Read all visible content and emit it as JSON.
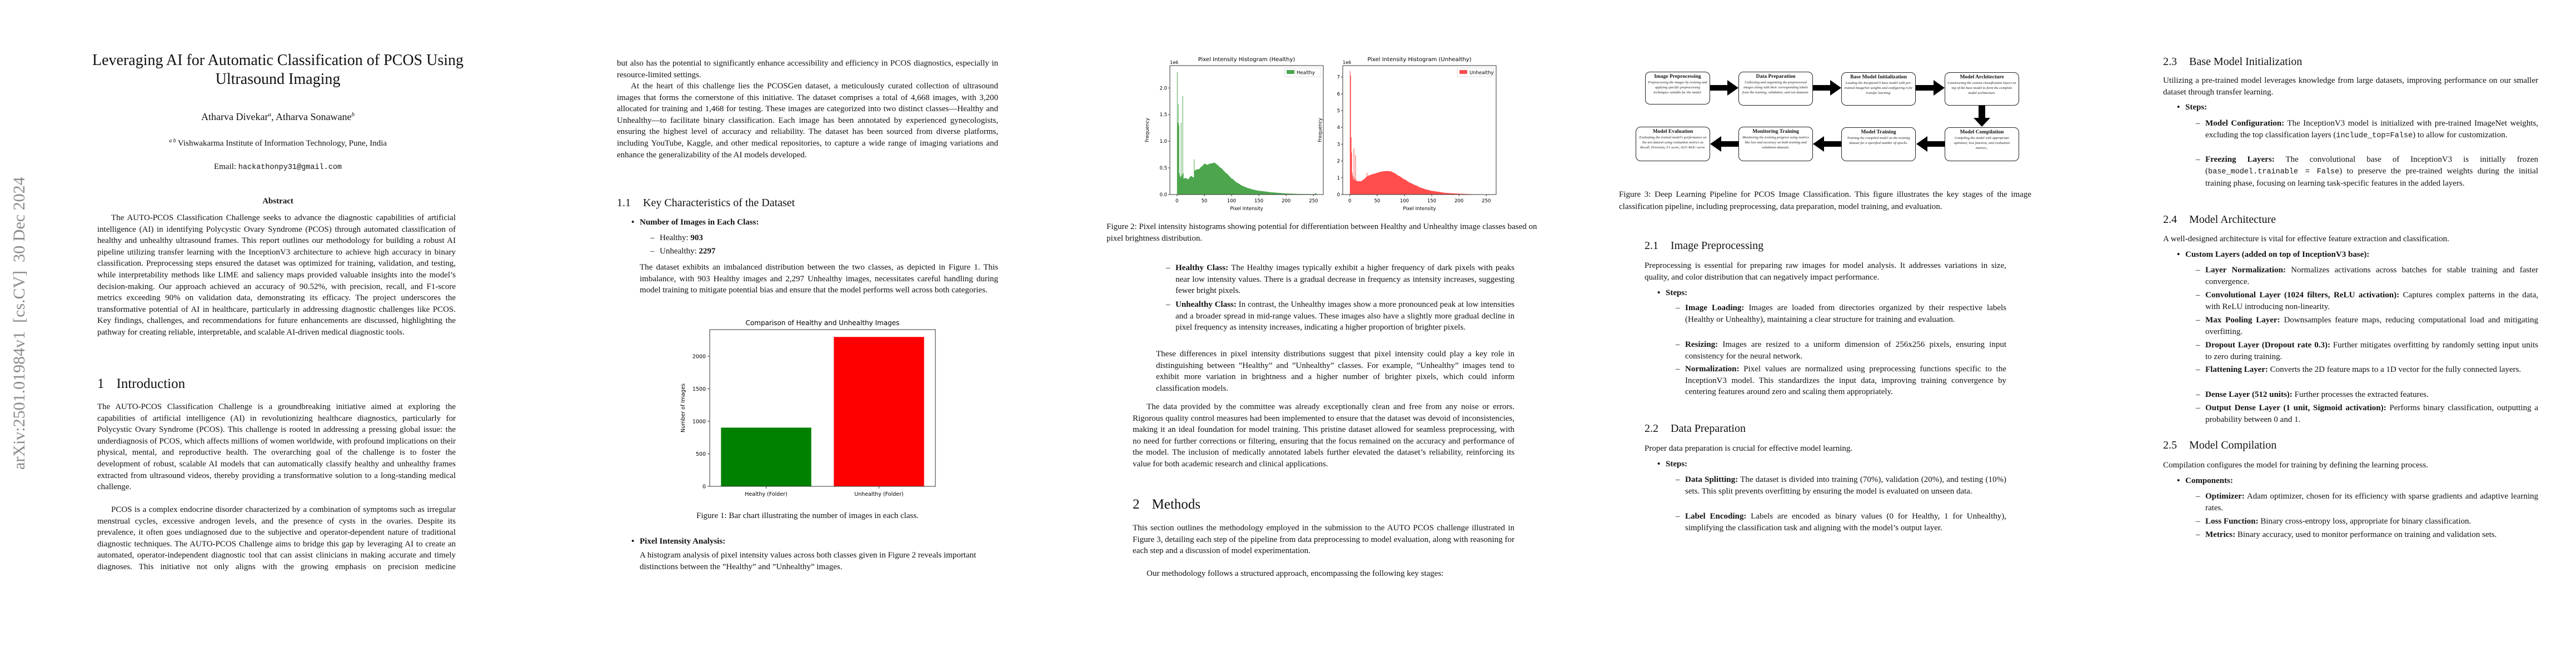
{
  "arxiv_stamp": "arXiv:2501.01984v1  [cs.CV]  30 Dec 2024",
  "title": "Leveraging AI for Automatic Classification of PCOS Using Ultrasound Imaging",
  "authors": {
    "first": "Atharva Divekar",
    "first_sup": "a",
    "second": "Atharva Sonawane",
    "second_sup": "b",
    "separator": ","
  },
  "affiliation": {
    "sup": "a b",
    "text": "Vishwakarma Institute of Information Technology, Pune, India"
  },
  "email": {
    "label": "Email:",
    "address": "hackathonpy31@gmail.com"
  },
  "abstract": {
    "heading": "Abstract",
    "text": "The AUTO-PCOS Classification Challenge seeks to advance the diagnostic capabilities of artificial intelligence (AI) in identifying Polycystic Ovary Syndrome (PCOS) through automated classification of healthy and unhealthy ultrasound frames. This report outlines our methodology for building a robust AI pipeline utilizing transfer learning with the InceptionV3 architecture to achieve high accuracy in binary classification. Preprocessing steps ensured the dataset was optimized for training, validation, and testing, while interpretability methods like LIME and saliency maps provided valuable insights into the model’s decision-making. Our approach achieved an accuracy of 90.52%, with precision, recall, and F1-score metrics exceeding 90% on validation data, demonstrating its efficacy. The project underscores the transformative potential of AI in healthcare, particularly in addressing diagnostic challenges like PCOS. Key findings, challenges, and recommendations for future enhancements are discussed, highlighting the pathway for creating reliable, interpretable, and scalable AI-driven medical diagnostic tools."
  },
  "intro": {
    "number": "1",
    "heading": "Introduction",
    "p1": "The AUTO-PCOS Classification Challenge is a groundbreaking initiative aimed at exploring the capabilities of artificial intelligence (AI) in revolutionizing healthcare diagnostics, particularly for Polycystic Ovary Syndrome (PCOS). This challenge is rooted in addressing a pressing global issue: the underdiagnosis of PCOS, which affects millions of women worldwide, with profound implications on their physical, mental, and reproductive health. The overarching goal of the challenge is to foster the development of robust, scalable AI models that can automatically classify healthy and unhealthy frames extracted from ultrasound videos, thereby providing a transformative solution to a long-standing medical challenge.",
    "p2a": "PCOS is a complex endocrine disorder characterized by a combination of symptoms such as irregular menstrual cycles, excessive androgen levels, and the presence of cysts in the ovaries. Despite its prevalence, it often goes undiagnosed due to the subjective and operator-dependent nature of traditional diagnostic techniques. The AUTO-PCOS Challenge aims to bridge this gap by leveraging AI to create an automated, operator-independent diagnostic tool that can assist clinicians in making accurate and timely diagnoses. This initiative not only aligns with the growing emphasis on precision medicine",
    "p2b": "but also has the potential to significantly enhance accessibility and efficiency in PCOS diagnostics, especially in resource-limited settings.",
    "p3": "At the heart of this challenge lies the PCOSGen dataset, a meticulously curated collection of ultrasound images that forms the cornerstone of this initiative. The dataset comprises a total of 4,668 images, with 3,200 allocated for training and 1,468 for testing. These images are categorized into two distinct classes—Healthy and Unhealthy—to facilitate binary classification. Each image has been annotated by experienced gynecologists, ensuring the highest level of accuracy and reliability. The dataset has been sourced from diverse platforms, including YouTube, Kaggle, and other medical repositories, to capture a wide range of imaging variations and enhance the generalizability of the AI models developed."
  },
  "dataset": {
    "number": "1.1",
    "heading": "Key Characteristics of the Dataset",
    "bullet1": "Number of Images in Each Class:",
    "healthy_label": "Healthy:",
    "healthy_value": "903",
    "unhealthy_label": "Unhealthy:",
    "unhealthy_value": "2297",
    "imbalance_text": "The dataset exhibits an imbalanced distribution between the two classes, as depicted in Figure 1. This imbalance, with 903 Healthy images and 2,297 Unhealthy images, necessitates careful handling during model training to mitigate potential bias and ensure that the model performs well across both categories.",
    "figure1_caption": "Figure 1: Bar chart illustrating the number of images in each class.",
    "bullet2": "Pixel Intensity Analysis:",
    "pixel_text": "A histogram analysis of pixel intensity values across both classes given in Figure 2 reveals important distinctions between the ”Healthy” and ”Unhealthy” images.",
    "figure2_caption": "Figure 2: Pixel intensity histograms showing potential for differentiation between Healthy and Unhealthy image classes based on pixel brightness distribution.",
    "healthy_class_lead": "Healthy Class:",
    "healthy_class_text": "The Healthy images typically exhibit a higher frequency of dark pixels with peaks near low intensity values. There is a gradual decrease in frequency as intensity increases, suggesting fewer bright pixels.",
    "unhealthy_class_lead": "Unhealthy Class:",
    "unhealthy_class_text": "In contrast, the Unhealthy images show a more pronounced peak at low intensities and a broader spread in mid-range values. These images also have a slightly more gradual decline in pixel frequency as intensity increases, indicating a higher proportion of brighter pixels.",
    "differences_text": "These differences in pixel intensity distributions suggest that pixel intensity could play a key role in distinguishing between ”Healthy” and ”Unhealthy” classes. For example, ”Unhealthy” images tend to exhibit more variation in brightness and a higher number of brighter pixels, which could inform classification models.",
    "clean_text": "The data provided by the committee was already exceptionally clean and free from any noise or errors. Rigorous quality control measures had been implemented to ensure that the dataset was devoid of inconsistencies, making it an ideal foundation for model training. This pristine dataset allowed for seamless preprocessing, with no need for further corrections or filtering, ensuring that the focus remained on the accuracy and performance of the model. The inclusion of medically annotated labels further elevated the dataset’s reliability, reinforcing its value for both academic research and clinical applications."
  },
  "methods": {
    "number": "2",
    "heading": "Methods",
    "p1": "This section outlines the methodology employed in the submission to the AUTO PCOS challenge illustrated in Figure 3, detailing each step of the pipeline from data preprocessing to model evaluation, along with reasoning for each step and a discussion of model experimentation.",
    "p2": "Our methodology follows a structured approach, encompassing the following key stages:",
    "figure3_caption": "Figure 3: Deep Learning Pipeline for PCOS Image Classification. This figure illustrates the key stages of the image classification pipeline, including preprocessing, data preparation, model training, and evaluation.",
    "pipeline": [
      {
        "title": "Image Preprocessing",
        "desc": "Preprocessing the images by resizing and applying specific preprocessing techniques suitable for the model."
      },
      {
        "title": "Data Preparation",
        "desc": "Collecting and organizing the preprocessed images along with their corresponding labels from the training, validation, and test datasets."
      },
      {
        "title": "Base Model Initialization",
        "desc": "Loading the InceptionV3 base model with pre-trained ImageNet weights and configuring it for transfer learning."
      },
      {
        "title": "Model Architecture",
        "desc": "Constructing the custom classification layers on top of the base model to form the complete model architecture."
      },
      {
        "title": "Model Compilation",
        "desc": "Compiling the model with appropriate optimizer, loss function, and evaluation metrics.."
      },
      {
        "title": "Model Training",
        "desc": "Training the compiled model on the training dataset for a specified number of epochs."
      },
      {
        "title": "Monitoring Training",
        "desc": "Monitoring the training progress using metrics like loss and accuracy on both training and validation datasets."
      },
      {
        "title": "Model Evaluation",
        "desc": "Evaluating the trained model's performance on the test dataset using evaluation metrics as Recall, Precision, F1 score, AUC-ROC curve."
      }
    ]
  },
  "preprocessing": {
    "number": "2.1",
    "heading": "Image Preprocessing",
    "intro": "Preprocessing is essential for preparing raw images for model analysis. It addresses variations in size, quality, and color distribution that can negatively impact performance.",
    "steps_label": "Steps:",
    "items": [
      {
        "lead": "Image Loading:",
        "text": "Images are loaded from directories organized by their respective labels (Healthy or Unhealthy), maintaining a clear structure for training and evaluation."
      },
      {
        "lead": "Resizing:",
        "text": "Images are resized to a uniform dimension of 256x256 pixels, ensuring input consistency for the neural network."
      },
      {
        "lead": "Normalization:",
        "text": "Pixel values are normalized using preprocessing functions specific to the InceptionV3 model. This standardizes the input data, improving training convergence by centering features around zero and scaling them appropriately."
      }
    ]
  },
  "data_prep": {
    "number": "2.2",
    "heading": "Data Preparation",
    "intro": "Proper data preparation is crucial for effective model learning.",
    "steps_label": "Steps:",
    "items": [
      {
        "lead": "Data Splitting:",
        "text": "The dataset is divided into training (70%), validation (20%), and testing (10%) sets. This split prevents overfitting by ensuring the model is evaluated on unseen data."
      },
      {
        "lead": "Label Encoding:",
        "text": "Labels are encoded as binary values (0 for Healthy, 1 for Unhealthy), simplifying the classification task and aligning with the model’s output layer."
      }
    ]
  },
  "base_model": {
    "number": "2.3",
    "heading": "Base Model Initialization",
    "intro": "Utilizing a pre-trained model leverages knowledge from large datasets, improving performance on our smaller dataset through transfer learning.",
    "steps_label": "Steps:",
    "config_lead": "Model Configuration:",
    "config_text_a": "The InceptionV3 model is initialized with pre-trained ImageNet weights, excluding the top classification layers (",
    "config_code": "include_top=False",
    "config_text_b": ") to allow for customization.",
    "freeze_lead": "Freezing Layers:",
    "freeze_text_a": "The convolutional base of InceptionV3 is initially frozen (",
    "freeze_code": "base_model.trainable = False",
    "freeze_text_b": ") to preserve the pre-trained weights during the initial training phase, focusing on learning task-specific features in the added layers."
  },
  "architecture": {
    "number": "2.4",
    "heading": "Model Architecture",
    "intro": "A well-designed architecture is vital for effective feature extraction and classification.",
    "bullet": "Custom Layers (added on top of InceptionV3 base):",
    "items": [
      {
        "lead": "Layer Normalization:",
        "text": "Normalizes activations across batches for stable training and faster convergence."
      },
      {
        "lead": "Convolutional Layer (1024 filters, ReLU activation):",
        "text": "Captures complex patterns in the data, with ReLU introducing non-linearity."
      },
      {
        "lead": "Max Pooling Layer:",
        "text": "Downsamples feature maps, reducing computational load and mitigating overfitting."
      },
      {
        "lead": "Dropout Layer (Dropout rate 0.3):",
        "text": "Further mitigates overfitting by randomly setting input units to zero during training."
      },
      {
        "lead": "Flattening Layer:",
        "text": "Converts the 2D feature maps to a 1D vector for the fully connected layers."
      },
      {
        "lead": "Dense Layer (512 units):",
        "text": "Further processes the extracted features."
      },
      {
        "lead": "Output Dense Layer (1 unit, Sigmoid activation):",
        "text": "Performs binary classification, outputting a probability between 0 and 1."
      }
    ]
  },
  "compilation": {
    "number": "2.5",
    "heading": "Model Compilation",
    "intro": "Compilation configures the model for training by defining the learning process.",
    "bullet": "Components:",
    "items": [
      {
        "lead": "Optimizer:",
        "text": "Adam optimizer, chosen for its efficiency with sparse gradients and adaptive learning rates."
      },
      {
        "lead": "Loss Function:",
        "text": "Binary cross-entropy loss, appropriate for binary classification."
      },
      {
        "lead": "Metrics:",
        "text": "Binary accuracy, used to monitor performance on training and validation sets."
      }
    ]
  },
  "chart_data": [
    {
      "type": "bar",
      "title": "Comparison of Healthy and Unhealthy Images",
      "xlabel": "",
      "ylabel": "Number of Images",
      "categories": [
        "Healthy (Folder)",
        "Unhealthy (Folder)"
      ],
      "values": [
        903,
        2297
      ],
      "colors": [
        "#008000",
        "#ff0000"
      ],
      "ylim": [
        0,
        2410
      ],
      "yticks": [
        0,
        500,
        1000,
        1500,
        2000
      ],
      "grid": false
    },
    {
      "type": "area",
      "title": "Pixel Intensity Histogram (Healthy)",
      "xlabel": "Pixel Intensity",
      "ylabel": "Frequency",
      "y_offset_label": "1e6",
      "legend": "top-right",
      "series": [
        {
          "name": "Healthy",
          "color": "#4da64d",
          "x": [
            0,
            1,
            2,
            3,
            4,
            5,
            6,
            7,
            8,
            9,
            10,
            11,
            12,
            15,
            20,
            25,
            30,
            31,
            32,
            35,
            40,
            45,
            50,
            55,
            60,
            65,
            68,
            72,
            80,
            90,
            100,
            110,
            120,
            130,
            140,
            150,
            175,
            200,
            225,
            250,
            254,
            255
          ],
          "y": [
            2300000,
            1350000,
            1700000,
            1300000,
            400000,
            350000,
            320000,
            1350000,
            350000,
            380000,
            1850000,
            400000,
            300000,
            310000,
            290000,
            350000,
            320000,
            660000,
            450000,
            470000,
            480000,
            530000,
            580000,
            560000,
            580000,
            590000,
            600000,
            570000,
            500000,
            400000,
            300000,
            220000,
            160000,
            120000,
            90000,
            70000,
            40000,
            20000,
            10000,
            8000,
            25000,
            15000
          ]
        }
      ],
      "xlim": [
        -13,
        268
      ],
      "ylim": [
        0,
        2420000
      ],
      "xticks": [
        0,
        50,
        100,
        150,
        200,
        250
      ],
      "yticks": [
        0,
        500000,
        1000000,
        1500000,
        2000000
      ],
      "ytick_labels": [
        "0.0",
        "0.5",
        "1.0",
        "1.5",
        "2.0"
      ]
    },
    {
      "type": "area",
      "title": "Pixel Intensity Histogram (Unhealthy)",
      "xlabel": "Pixel Intensity",
      "ylabel": "Frequency",
      "y_offset_label": "1e6",
      "legend": "top-right",
      "series": [
        {
          "name": "Unhealthy",
          "color": "#ff4d4d",
          "x": [
            0,
            1,
            2,
            3,
            4,
            5,
            6,
            7,
            8,
            9,
            10,
            11,
            12,
            15,
            20,
            25,
            30,
            31,
            32,
            35,
            40,
            45,
            50,
            55,
            60,
            65,
            70,
            75,
            80,
            90,
            100,
            110,
            120,
            130,
            140,
            150,
            175,
            200,
            225,
            250,
            254,
            255
          ],
          "y": [
            7350000,
            7100000,
            3400000,
            2500000,
            1300000,
            1100000,
            900000,
            2750000,
            1000000,
            850000,
            2350000,
            900000,
            800000,
            800000,
            800000,
            900000,
            1050000,
            1300000,
            1100000,
            1150000,
            1200000,
            1250000,
            1300000,
            1350000,
            1380000,
            1400000,
            1400000,
            1380000,
            1300000,
            1100000,
            900000,
            700000,
            550000,
            400000,
            300000,
            220000,
            100000,
            50000,
            20000,
            10000,
            25000,
            15000
          ]
        }
      ],
      "xlim": [
        -13,
        268
      ],
      "ylim": [
        0,
        7680000
      ],
      "xticks": [
        0,
        50,
        100,
        150,
        200,
        250
      ],
      "yticks": [
        0,
        1000000,
        2000000,
        3000000,
        4000000,
        5000000,
        6000000,
        7000000
      ],
      "ytick_labels": [
        "0",
        "1",
        "2",
        "3",
        "4",
        "5",
        "6",
        "7"
      ]
    }
  ]
}
